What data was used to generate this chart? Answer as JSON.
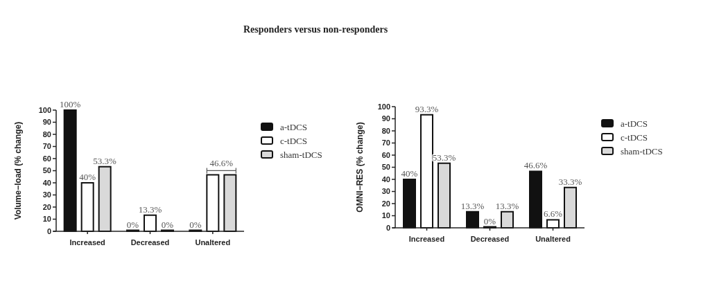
{
  "chart_data": [
    {
      "type": "bar",
      "title": "Responders versus non-responders",
      "ylabel": "Volume−load (% change)",
      "categories": [
        "Increased",
        "Decreased",
        "Unaltered"
      ],
      "series": [
        {
          "name": "a-tDCS",
          "color": "#111111",
          "values": [
            100,
            0,
            0
          ],
          "value_labels": [
            "100%",
            "0%",
            "0%"
          ]
        },
        {
          "name": "c-tDCS",
          "color": "#ffffff",
          "values": [
            40,
            13.3,
            46.6
          ],
          "value_labels": [
            "40%",
            "13.3%",
            null
          ]
        },
        {
          "name": "sham-tDCS",
          "color": "#d9d9d9",
          "values": [
            53.3,
            0,
            46.6
          ],
          "value_labels": [
            "53.3%",
            "0%",
            null
          ]
        }
      ],
      "ylim": [
        0,
        100
      ],
      "yticks": [
        0,
        10,
        20,
        30,
        40,
        50,
        60,
        70,
        80,
        90,
        100
      ],
      "legend": "right",
      "annotations": [
        {
          "text": "46.6%",
          "x": "Unaltered",
          "y": 46.6
        }
      ]
    },
    {
      "type": "bar",
      "ylabel": "OMNI−RES (% change)",
      "categories": [
        "Increased",
        "Decreased",
        "Unaltered"
      ],
      "series": [
        {
          "name": "a-tDCS",
          "color": "#111111",
          "values": [
            40,
            13.3,
            46.6
          ],
          "value_labels": [
            "40%",
            "13.3%",
            "46.6%"
          ]
        },
        {
          "name": "c-tDCS",
          "color": "#ffffff",
          "values": [
            93.3,
            0,
            6.6
          ],
          "value_labels": [
            "93.3%",
            "0%",
            "6.6%"
          ]
        },
        {
          "name": "sham-tDCS",
          "color": "#d9d9d9",
          "values": [
            53.3,
            13.3,
            33.3
          ],
          "value_labels": [
            "53.3%",
            "13.3%",
            "33.3%"
          ]
        }
      ],
      "ylim": [
        0,
        100
      ],
      "yticks": [
        0,
        10,
        20,
        30,
        40,
        50,
        60,
        70,
        80,
        90,
        100
      ],
      "legend": "right"
    }
  ]
}
